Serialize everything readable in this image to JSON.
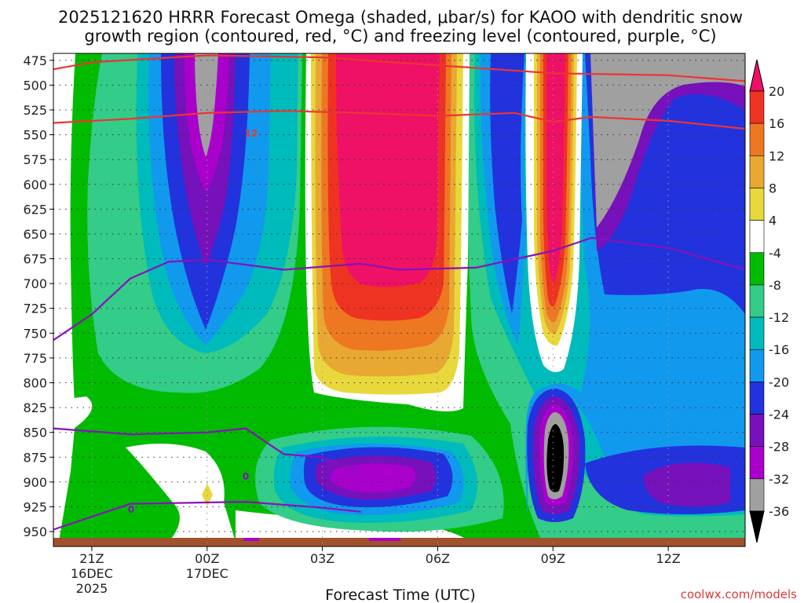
{
  "chart_data": {
    "type": "heatmap",
    "title_line1": "2025121620 HRRR Forecast Omega (shaded, μbar/s) for KAOO with dendritic snow",
    "title_line2": "growth region (contoured, red, °C) and freezing level (contoured, purple, °C)",
    "xlabel": "Forecast Time (UTC)",
    "ylabel": "",
    "credit": "coolwx.com/models",
    "x_range_hours": [
      -2,
      16
    ],
    "x_ticks": [
      {
        "hour": -1,
        "label": "21Z",
        "date": "16DEC",
        "year": "2025"
      },
      {
        "hour": 2,
        "label": "00Z",
        "date": "17DEC",
        "year": ""
      },
      {
        "hour": 5,
        "label": "03Z",
        "date": "",
        "year": ""
      },
      {
        "hour": 8,
        "label": "06Z",
        "date": "",
        "year": ""
      },
      {
        "hour": 11,
        "label": "09Z",
        "date": "",
        "year": ""
      },
      {
        "hour": 14,
        "label": "12Z",
        "date": "",
        "year": ""
      }
    ],
    "y_levels_hpa": [
      475,
      500,
      525,
      550,
      575,
      600,
      625,
      650,
      675,
      700,
      725,
      750,
      775,
      800,
      825,
      850,
      875,
      900,
      925,
      950
    ],
    "y_range_hpa": [
      468,
      965
    ],
    "colorbar": {
      "labels": [
        "20",
        "16",
        "12",
        "8",
        "4",
        "-4",
        "-8",
        "-12",
        "-16",
        "-20",
        "-24",
        "-28",
        "-32",
        "-36"
      ],
      "colors": [
        "#ee1166",
        "#ee3322",
        "#ee7722",
        "#e8a832",
        "#e8d83c",
        "#ffffff",
        "#00bb00",
        "#33cc88",
        "#00bbbb",
        "#1199ee",
        "#2233dd",
        "#7711bb",
        "#aa00cc",
        "#a0a0a0",
        "#000000"
      ]
    },
    "contour_labels": {
      "dgz": "12",
      "freezing_a": "0",
      "freezing_b": "0"
    },
    "series": [
      {
        "name": "dgz_upper_isotherm",
        "color": "#ee3333",
        "points": [
          [
            -2,
            484
          ],
          [
            -1,
            477
          ],
          [
            2,
            470
          ],
          [
            5,
            472
          ],
          [
            8,
            480
          ],
          [
            11,
            488
          ],
          [
            14,
            490
          ],
          [
            16,
            496
          ]
        ]
      },
      {
        "name": "dgz_lower_isotherm",
        "color": "#ee3333",
        "points": [
          [
            -2,
            538
          ],
          [
            0,
            534
          ],
          [
            2,
            528
          ],
          [
            4,
            526
          ],
          [
            6,
            528
          ],
          [
            8,
            531
          ],
          [
            10,
            528
          ],
          [
            11,
            537
          ],
          [
            12,
            532
          ],
          [
            14,
            536
          ],
          [
            16,
            544
          ]
        ]
      },
      {
        "name": "freezing_level_upper",
        "color": "#8811bb",
        "points": [
          [
            -2,
            757
          ],
          [
            -1,
            731
          ],
          [
            0,
            695
          ],
          [
            1,
            678
          ],
          [
            2,
            676
          ],
          [
            4,
            686
          ],
          [
            6,
            680
          ],
          [
            7,
            686
          ],
          [
            9,
            684
          ],
          [
            11,
            667
          ],
          [
            12,
            654
          ],
          [
            14,
            664
          ],
          [
            15,
            675
          ],
          [
            16,
            686
          ]
        ]
      },
      {
        "name": "freezing_level_lower_a",
        "color": "#8811bb",
        "points": [
          [
            -2,
            846
          ],
          [
            0,
            852
          ],
          [
            2,
            850
          ],
          [
            3,
            846
          ],
          [
            4,
            872
          ],
          [
            5,
            875
          ],
          [
            6,
            892
          ]
        ]
      },
      {
        "name": "freezing_level_lower_b",
        "color": "#8811bb",
        "points": [
          [
            -2,
            948
          ],
          [
            0,
            922
          ],
          [
            3,
            920
          ],
          [
            5,
            926
          ],
          [
            6,
            930
          ]
        ]
      }
    ]
  }
}
